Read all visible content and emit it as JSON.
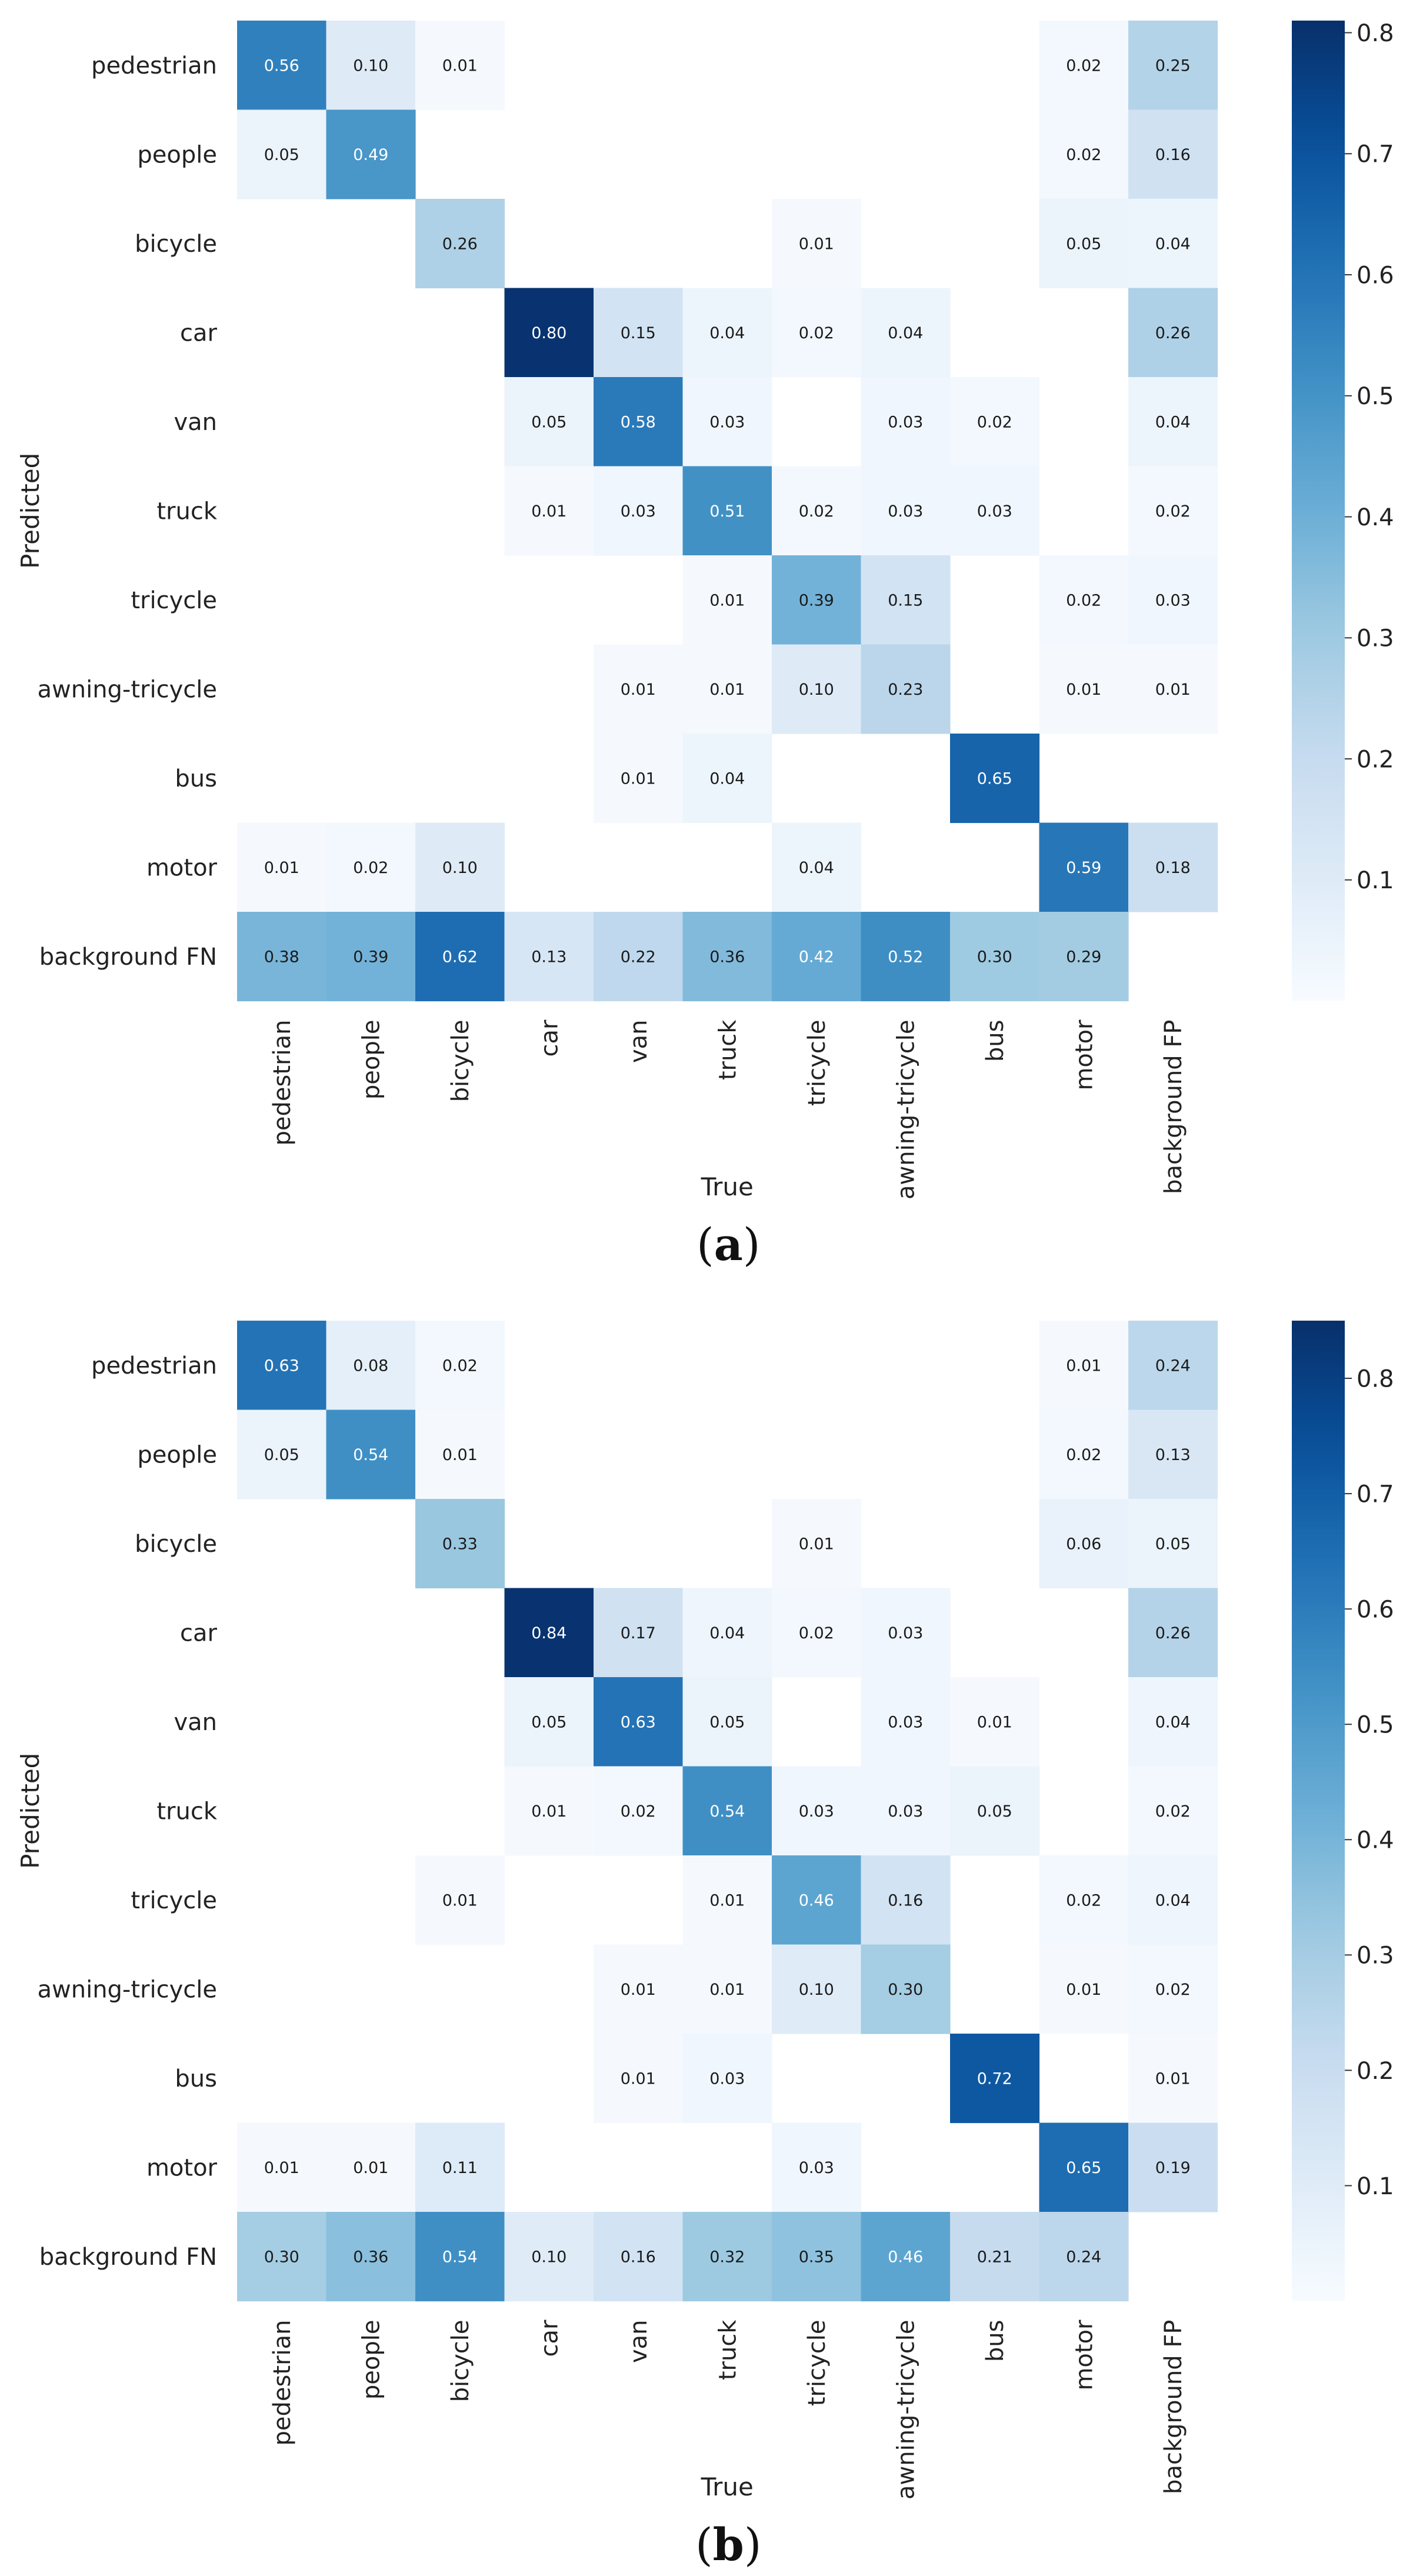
{
  "chart_data": [
    {
      "type": "heatmap",
      "panel_label": "(a)",
      "label_letter": "a",
      "xlabel": "True",
      "ylabel": "Predicted",
      "x_categories": [
        "pedestrian",
        "people",
        "bicycle",
        "car",
        "van",
        "truck",
        "tricycle",
        "awning-tricycle",
        "bus",
        "motor",
        "background FP"
      ],
      "y_categories": [
        "pedestrian",
        "people",
        "bicycle",
        "car",
        "van",
        "truck",
        "tricycle",
        "awning-tricycle",
        "bus",
        "motor",
        "background FN"
      ],
      "values": [
        [
          0.56,
          0.1,
          0.01,
          null,
          null,
          null,
          null,
          null,
          null,
          0.02,
          0.25
        ],
        [
          0.05,
          0.49,
          null,
          null,
          null,
          null,
          null,
          null,
          null,
          0.02,
          0.16
        ],
        [
          null,
          null,
          0.26,
          null,
          null,
          null,
          0.01,
          null,
          null,
          0.05,
          0.04
        ],
        [
          null,
          null,
          null,
          0.8,
          0.15,
          0.04,
          0.02,
          0.04,
          null,
          null,
          0.26
        ],
        [
          null,
          null,
          null,
          0.05,
          0.58,
          0.03,
          null,
          0.03,
          0.02,
          null,
          0.04
        ],
        [
          null,
          null,
          null,
          0.01,
          0.03,
          0.51,
          0.02,
          0.03,
          0.03,
          null,
          0.02
        ],
        [
          null,
          null,
          null,
          null,
          null,
          0.01,
          0.39,
          0.15,
          null,
          0.02,
          0.03
        ],
        [
          null,
          null,
          null,
          null,
          0.01,
          0.01,
          0.1,
          0.23,
          null,
          0.01,
          0.01
        ],
        [
          null,
          null,
          null,
          null,
          0.01,
          0.04,
          null,
          null,
          0.65,
          null,
          null
        ],
        [
          0.01,
          0.02,
          0.1,
          null,
          null,
          null,
          0.04,
          null,
          null,
          0.59,
          0.18
        ],
        [
          0.38,
          0.39,
          0.62,
          0.13,
          0.22,
          0.36,
          0.42,
          0.52,
          0.3,
          0.29,
          null
        ]
      ],
      "colorbar": {
        "min": 0.0,
        "max": 0.81,
        "ticks": [
          0.1,
          0.2,
          0.3,
          0.4,
          0.5,
          0.6,
          0.7,
          0.8
        ],
        "colormap": "Blues"
      }
    },
    {
      "type": "heatmap",
      "panel_label": "(b)",
      "label_letter": "b",
      "xlabel": "True",
      "ylabel": "Predicted",
      "x_categories": [
        "pedestrian",
        "people",
        "bicycle",
        "car",
        "van",
        "truck",
        "tricycle",
        "awning-tricycle",
        "bus",
        "motor",
        "background FP"
      ],
      "y_categories": [
        "pedestrian",
        "people",
        "bicycle",
        "car",
        "van",
        "truck",
        "tricycle",
        "awning-tricycle",
        "bus",
        "motor",
        "background FN"
      ],
      "values": [
        [
          0.63,
          0.08,
          0.02,
          null,
          null,
          null,
          null,
          null,
          null,
          0.01,
          0.24
        ],
        [
          0.05,
          0.54,
          0.01,
          null,
          null,
          null,
          null,
          null,
          null,
          0.02,
          0.13
        ],
        [
          null,
          null,
          0.33,
          null,
          null,
          null,
          0.01,
          null,
          null,
          0.06,
          0.05
        ],
        [
          null,
          null,
          null,
          0.84,
          0.17,
          0.04,
          0.02,
          0.03,
          null,
          null,
          0.26
        ],
        [
          null,
          null,
          null,
          0.05,
          0.63,
          0.05,
          null,
          0.03,
          0.01,
          null,
          0.04
        ],
        [
          null,
          null,
          null,
          0.01,
          0.02,
          0.54,
          0.03,
          0.03,
          0.05,
          null,
          0.02
        ],
        [
          null,
          null,
          0.01,
          null,
          null,
          0.01,
          0.46,
          0.16,
          null,
          0.02,
          0.04
        ],
        [
          null,
          null,
          null,
          null,
          0.01,
          0.01,
          0.1,
          0.3,
          null,
          0.01,
          0.02
        ],
        [
          null,
          null,
          null,
          null,
          0.01,
          0.03,
          null,
          null,
          0.72,
          null,
          0.01
        ],
        [
          0.01,
          0.01,
          0.11,
          null,
          null,
          null,
          0.03,
          null,
          null,
          0.65,
          0.19
        ],
        [
          0.3,
          0.36,
          0.54,
          0.1,
          0.16,
          0.32,
          0.35,
          0.46,
          0.21,
          0.24,
          null
        ]
      ],
      "colorbar": {
        "min": 0.0,
        "max": 0.85,
        "ticks": [
          0.1,
          0.2,
          0.3,
          0.4,
          0.5,
          0.6,
          0.7,
          0.8
        ],
        "colormap": "Blues"
      }
    }
  ]
}
